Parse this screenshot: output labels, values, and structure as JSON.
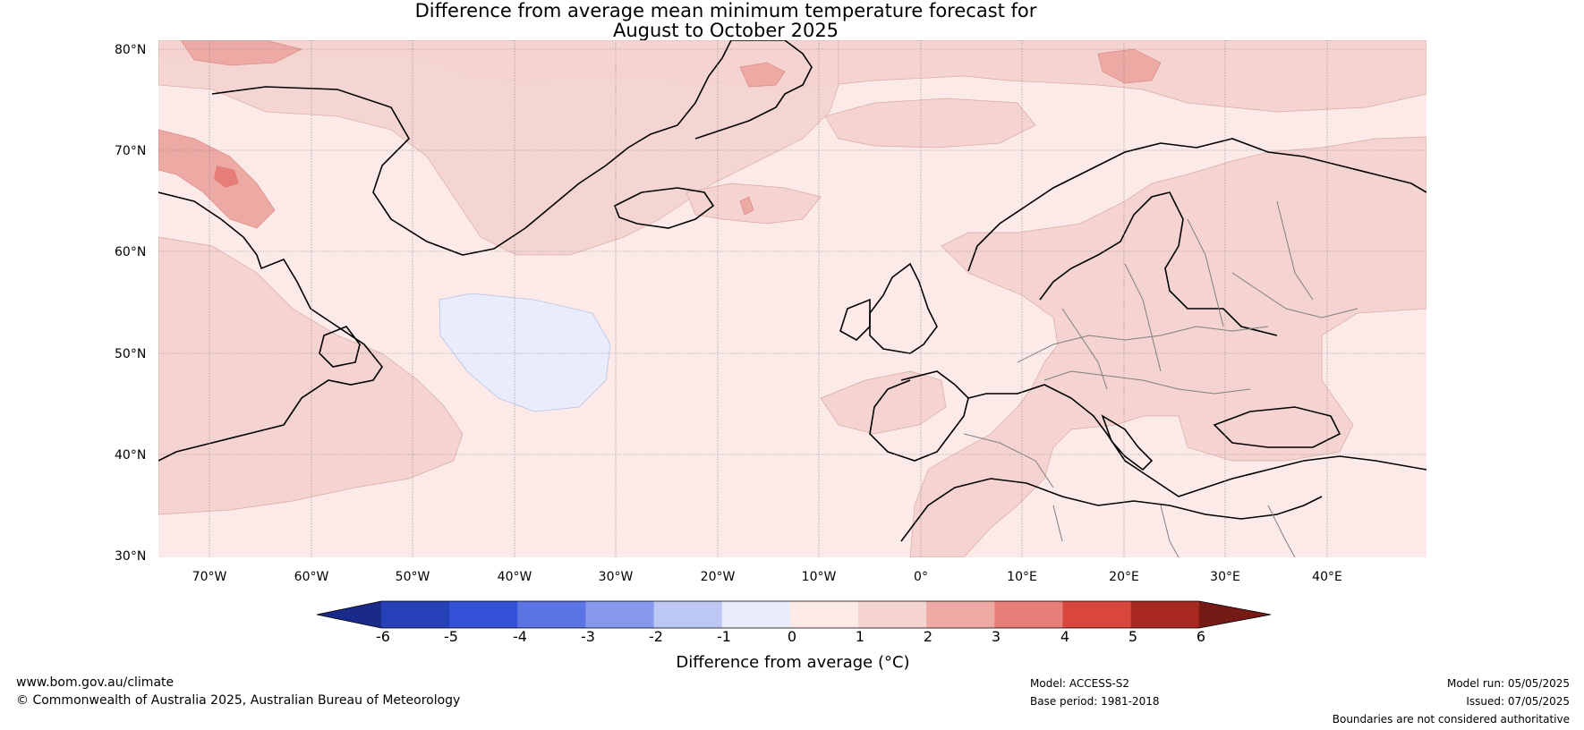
{
  "title_line1": "Difference from average mean minimum temperature forecast for",
  "title_line2": "August to October 2025",
  "lat_labels": [
    "80°N",
    "70°N",
    "60°N",
    "50°N",
    "40°N",
    "30°N"
  ],
  "lon_labels": [
    "70°W",
    "60°W",
    "50°W",
    "40°W",
    "30°W",
    "20°W",
    "10°W",
    "0°",
    "10°E",
    "20°E",
    "30°E",
    "40°E"
  ],
  "colorbar": {
    "label": "Difference from average (°C)",
    "ticks": [
      "-6",
      "-5",
      "-4",
      "-3",
      "-2",
      "-1",
      "0",
      "1",
      "2",
      "3",
      "4",
      "5",
      "6"
    ],
    "colors": [
      "#1a2a8a",
      "#2640b8",
      "#3352d8",
      "#5c75e4",
      "#8799ec",
      "#bcc7f4",
      "#e8ecfb",
      "#fbeae8",
      "#f4d3d0",
      "#eda9a4",
      "#e47e76",
      "#d9463c",
      "#a82822",
      "#761a16"
    ]
  },
  "footer": {
    "website": "www.bom.gov.au/climate",
    "copyright": "© Commonwealth of Australia 2025, Australian Bureau of Meteorology",
    "model": "Model: ACCESS-S2",
    "base_period": "Base period: 1981-2018",
    "model_run": "Model run: 05/05/2025",
    "issued": "Issued: 07/05/2025",
    "disclaimer": "Boundaries are not considered authoritative"
  }
}
